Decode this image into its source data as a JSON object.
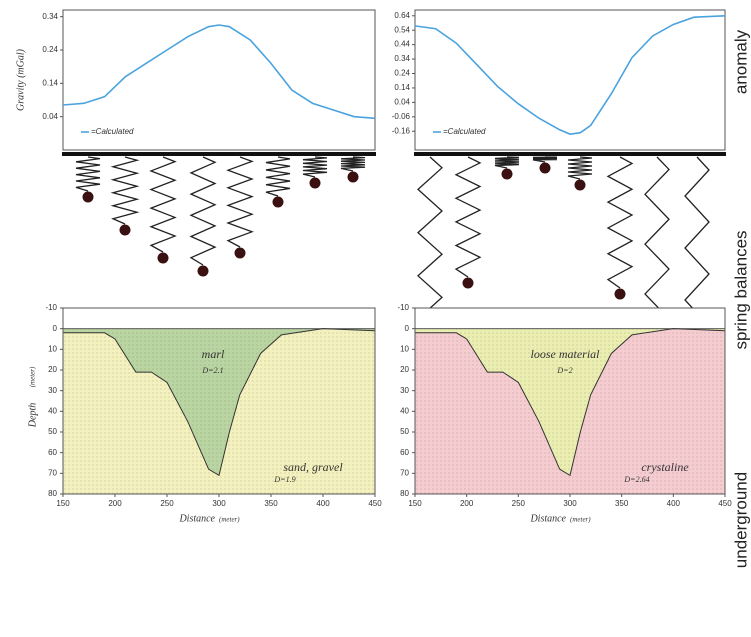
{
  "labels": {
    "anomaly": "anomaly",
    "springs": "spring balances",
    "underground": "underground"
  },
  "chart_data": [
    {
      "type": "line",
      "ylabel": "Gravity (mGal)",
      "x": [
        150,
        170,
        190,
        210,
        230,
        250,
        270,
        290,
        300,
        310,
        330,
        350,
        370,
        390,
        410,
        430,
        450
      ],
      "series": [
        {
          "name": "=Calculated",
          "color": "#4aa3df",
          "values": [
            0.075,
            0.08,
            0.1,
            0.16,
            0.2,
            0.24,
            0.28,
            0.31,
            0.315,
            0.31,
            0.27,
            0.2,
            0.12,
            0.08,
            0.06,
            0.04,
            0.035
          ]
        }
      ],
      "xlim": [
        150,
        450
      ],
      "ylim": [
        -0.06,
        0.36
      ],
      "yticks": [
        0.04,
        0.14,
        0.24,
        0.34
      ]
    },
    {
      "type": "line",
      "x": [
        150,
        170,
        190,
        210,
        230,
        250,
        270,
        290,
        300,
        310,
        320,
        340,
        360,
        380,
        400,
        420,
        450
      ],
      "series": [
        {
          "name": "=Calculated",
          "color": "#4aa3df",
          "values": [
            0.57,
            0.55,
            0.45,
            0.3,
            0.15,
            0.03,
            -0.07,
            -0.15,
            -0.18,
            -0.17,
            -0.12,
            0.1,
            0.35,
            0.5,
            0.58,
            0.63,
            0.64
          ]
        }
      ],
      "xlim": [
        150,
        450
      ],
      "ylim": [
        -0.29,
        0.68
      ],
      "yticks": [
        -0.16,
        -0.06,
        0.04,
        0.14,
        0.24,
        0.34,
        0.44,
        0.54,
        0.64
      ]
    },
    {
      "type": "profile",
      "xlabel": "Distance",
      "xunit": "(meter)",
      "ylabel": "Depth",
      "yunit": "(meter)",
      "x": [
        150,
        190,
        200,
        210,
        220,
        235,
        250,
        270,
        290,
        300,
        310,
        320,
        340,
        360,
        400,
        450
      ],
      "values": [
        2,
        2,
        5,
        13,
        21,
        21,
        26,
        45,
        68,
        71,
        50,
        32,
        12,
        3,
        0,
        1
      ],
      "fill_inside": "#b9d6a2",
      "fill_outside": "#f3f1bd",
      "annotations": [
        "marl",
        "D=2.1",
        "sand, gravel",
        "D=1.9"
      ],
      "xlim": [
        150,
        450
      ],
      "ylim": [
        -10,
        80
      ],
      "xticks": [
        150,
        200,
        250,
        300,
        350,
        400,
        450
      ],
      "yticks": [
        -10,
        0,
        10,
        20,
        30,
        40,
        50,
        60,
        70,
        80
      ]
    },
    {
      "type": "profile",
      "xlabel": "Distance",
      "xunit": "(meter)",
      "x": [
        150,
        190,
        200,
        210,
        220,
        235,
        250,
        270,
        290,
        300,
        310,
        320,
        340,
        360,
        400,
        450
      ],
      "values": [
        2,
        2,
        5,
        13,
        21,
        21,
        26,
        45,
        68,
        71,
        50,
        32,
        12,
        3,
        0,
        1
      ],
      "fill_inside": "#eaeeb0",
      "fill_outside": "#f5cdd0",
      "annotations": [
        "loose material",
        "D=2",
        "crystaline",
        "D=2.64"
      ],
      "xlim": [
        150,
        450
      ],
      "ylim": [
        -10,
        80
      ],
      "xticks": [
        150,
        200,
        250,
        300,
        350,
        400,
        450
      ],
      "yticks": [
        -10,
        0,
        10,
        20,
        30,
        40,
        50,
        60,
        70,
        80
      ]
    }
  ]
}
